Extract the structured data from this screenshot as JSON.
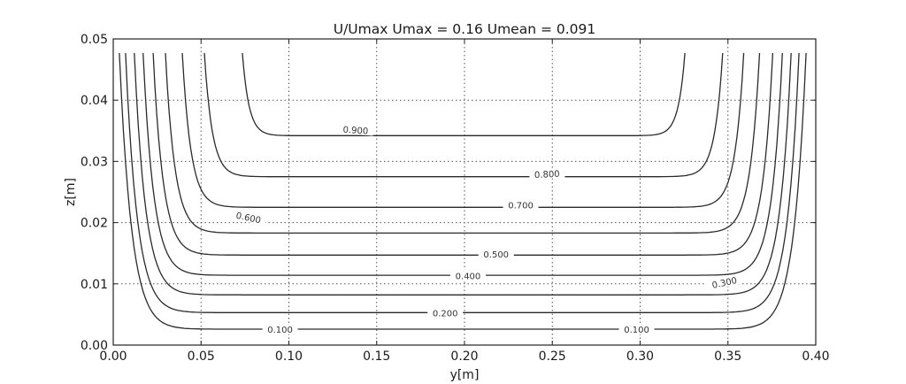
{
  "chart_data": {
    "type": "contour",
    "title": "U/Umax Umax = 0.16 Umean = 0.091",
    "xlabel": "y[m]",
    "ylabel": "z[m]",
    "xlim": [
      0.0,
      0.4
    ],
    "ylim": [
      0.0,
      0.05
    ],
    "x_ticks": [
      "0.00",
      "0.05",
      "0.10",
      "0.15",
      "0.20",
      "0.25",
      "0.30",
      "0.35",
      "0.40"
    ],
    "y_ticks": [
      "0.00",
      "0.01",
      "0.02",
      "0.03",
      "0.04",
      "0.05"
    ],
    "grid": true,
    "grid_style": "dotted",
    "levels": [
      0.1,
      0.2,
      0.3,
      0.4,
      0.5,
      0.6,
      0.7,
      0.8,
      0.9
    ],
    "contour_labels": [
      {
        "text": "0.100",
        "level": 0.1,
        "x": 0.095,
        "y": 0.0025
      },
      {
        "text": "0.100",
        "level": 0.1,
        "x": 0.298,
        "y": 0.0025
      },
      {
        "text": "0.200",
        "level": 0.2,
        "x": 0.189,
        "y": 0.0052
      },
      {
        "text": "0.300",
        "level": 0.3,
        "x": 0.348,
        "y": 0.0102
      },
      {
        "text": "0.400",
        "level": 0.4,
        "x": 0.202,
        "y": 0.0113
      },
      {
        "text": "0.500",
        "level": 0.5,
        "x": 0.218,
        "y": 0.0148
      },
      {
        "text": "0.600",
        "level": 0.6,
        "x": 0.077,
        "y": 0.0208
      },
      {
        "text": "0.700",
        "level": 0.7,
        "x": 0.232,
        "y": 0.0228
      },
      {
        "text": "0.800",
        "level": 0.8,
        "x": 0.247,
        "y": 0.0279
      },
      {
        "text": "0.900",
        "level": 0.9,
        "x": 0.138,
        "y": 0.0351
      }
    ],
    "contour_min_z_at_center": {
      "0.1": 0.0026,
      "0.2": 0.0053,
      "0.3": 0.0082,
      "0.4": 0.0114,
      "0.5": 0.0147,
      "0.6": 0.0183,
      "0.7": 0.0225,
      "0.8": 0.0275,
      "0.9": 0.0342
    },
    "contour_y_at_top": {
      "0.1": [
        0.0035,
        0.3945
      ],
      "0.2": [
        0.007,
        0.3905
      ],
      "0.3": [
        0.012,
        0.386
      ],
      "0.4": [
        0.017,
        0.381
      ],
      "0.5": [
        0.0227,
        0.3755
      ],
      "0.6": [
        0.0297,
        0.368
      ],
      "0.7": [
        0.0393,
        0.359
      ],
      "0.8": [
        0.0519,
        0.347
      ],
      "0.9": [
        0.0735,
        0.3255
      ]
    },
    "umax": 0.16,
    "umean": 0.091
  }
}
